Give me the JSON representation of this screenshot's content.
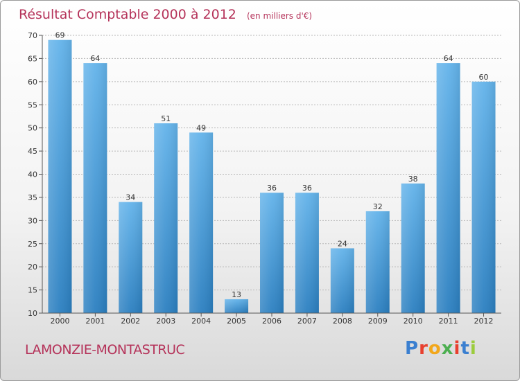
{
  "chart_data": {
    "type": "bar",
    "title": "Résultat Comptable 2000 à 2012",
    "subtitle": "(en milliers d'€)",
    "categories": [
      "2000",
      "2001",
      "2002",
      "2003",
      "2004",
      "2005",
      "2006",
      "2007",
      "2008",
      "2009",
      "2010",
      "2011",
      "2012"
    ],
    "values": [
      69,
      64,
      34,
      51,
      49,
      13,
      36,
      36,
      24,
      32,
      38,
      64,
      60
    ],
    "ylim": [
      10,
      70
    ],
    "yticks": [
      10,
      15,
      20,
      25,
      30,
      35,
      40,
      45,
      50,
      55,
      60,
      65,
      70
    ],
    "xlabel": "",
    "ylabel": "",
    "grid": true
  },
  "commune": "LAMONZIE-MONTASTRUC",
  "logo": {
    "text": "Proxiti",
    "letter_colors": [
      "#3a7fd0",
      "#e8402f",
      "#f2a71b",
      "#4caf50",
      "#e8402f",
      "#3a7fd0",
      "#9ccc3d"
    ]
  },
  "colors": {
    "bar_top": "#63b3ea",
    "bar_bottom": "#2b7fc0",
    "title": "#b5335a"
  }
}
